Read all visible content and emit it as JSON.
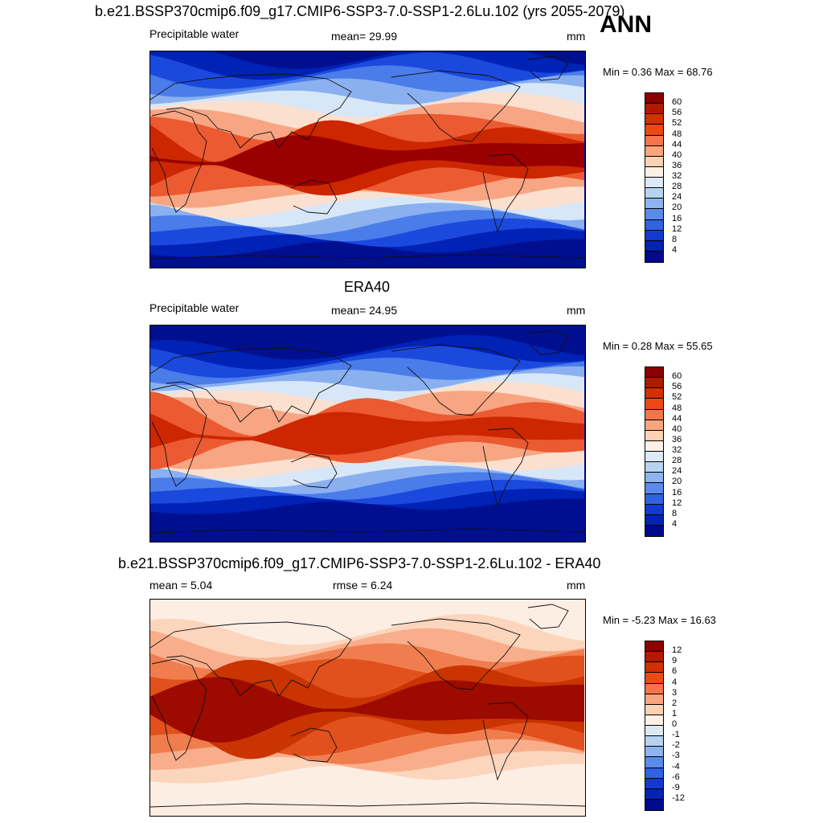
{
  "season": "ANN",
  "panels": [
    {
      "title": "b.e21.BSSP370cmip6.f09_g17.CMIP6-SSP3-7.0-SSP1-2.6Lu.102 (yrs 2055-2079)",
      "left_label": "Precipitable water",
      "center_label": "mean=  29.99",
      "units": "mm",
      "minmax": "Min =   0.36 Max =  68.76",
      "colorbar_ticks": [
        "60",
        "56",
        "52",
        "48",
        "44",
        "40",
        "36",
        "32",
        "28",
        "24",
        "20",
        "16",
        "12",
        "8",
        "4"
      ],
      "colorbar_colors": [
        "#8c0000",
        "#b21a00",
        "#d23000",
        "#ec4a12",
        "#f6744a",
        "#fba57f",
        "#fdd2b4",
        "#fdf1e6",
        "#dce9f7",
        "#b9d2f2",
        "#8fb3ef",
        "#5b8aeb",
        "#2f63e2",
        "#1239d0",
        "#0622b0",
        "#000a8c"
      ],
      "field_colors": [
        "#000f8f",
        "#0022b5",
        "#1b49dd",
        "#4a7cea",
        "#8ab0f0",
        "#d8e7f8",
        "#fbe0cf",
        "#f7a583",
        "#eb5a30",
        "#cc2700",
        "#9a0000"
      ],
      "field_params": {
        "amp": 1.15,
        "jitter": 0.22
      }
    },
    {
      "title": "ERA40",
      "left_label": "Precipitable water",
      "center_label": "mean=  24.95",
      "units": "mm",
      "minmax": "Min =   0.28 Max =  55.65",
      "colorbar_ticks": [
        "60",
        "56",
        "52",
        "48",
        "44",
        "40",
        "36",
        "32",
        "28",
        "24",
        "20",
        "16",
        "12",
        "8",
        "4"
      ],
      "colorbar_colors": [
        "#8c0000",
        "#b21a00",
        "#d23000",
        "#ec4a12",
        "#f6744a",
        "#fba57f",
        "#fdd2b4",
        "#fdf1e6",
        "#dce9f7",
        "#b9d2f2",
        "#8fb3ef",
        "#5b8aeb",
        "#2f63e2",
        "#1239d0",
        "#0622b0",
        "#000a8c"
      ],
      "field_colors": [
        "#000f8f",
        "#0022b5",
        "#1b49dd",
        "#4a7cea",
        "#8ab0f0",
        "#d8e7f8",
        "#fbe0cf",
        "#f7a583",
        "#eb5a30",
        "#cc2700"
      ],
      "field_params": {
        "amp": 0.95,
        "jitter": 0.18
      }
    },
    {
      "title": "b.e21.BSSP370cmip6.f09_g17.CMIP6-SSP3-7.0-SSP1-2.6Lu.102 - ERA40",
      "left_label": "mean =   5.04",
      "center_label": "rmse =   6.24",
      "units": "mm",
      "minmax": "Min =  -5.23 Max =  16.63",
      "colorbar_ticks": [
        "12",
        "9",
        "6",
        "4",
        "3",
        "2",
        "1",
        "0",
        "-1",
        "-2",
        "-3",
        "-4",
        "-6",
        "-9",
        "-12"
      ],
      "colorbar_colors": [
        "#8c0000",
        "#b21a00",
        "#d23000",
        "#ec4a12",
        "#f6744a",
        "#fba57f",
        "#fdd2b4",
        "#fdf1e6",
        "#dce9f7",
        "#b9d2f2",
        "#8fb3ef",
        "#5b8aeb",
        "#2f63e2",
        "#1239d0",
        "#0622b0",
        "#000a8c"
      ],
      "field_colors": [
        "#fdeee3",
        "#fcd5bd",
        "#f9ae8b",
        "#f07d4e",
        "#e2501d",
        "#c93400",
        "#9c0a00"
      ],
      "field_params": {
        "amp": 0.9,
        "jitter": 0.25
      }
    }
  ]
}
